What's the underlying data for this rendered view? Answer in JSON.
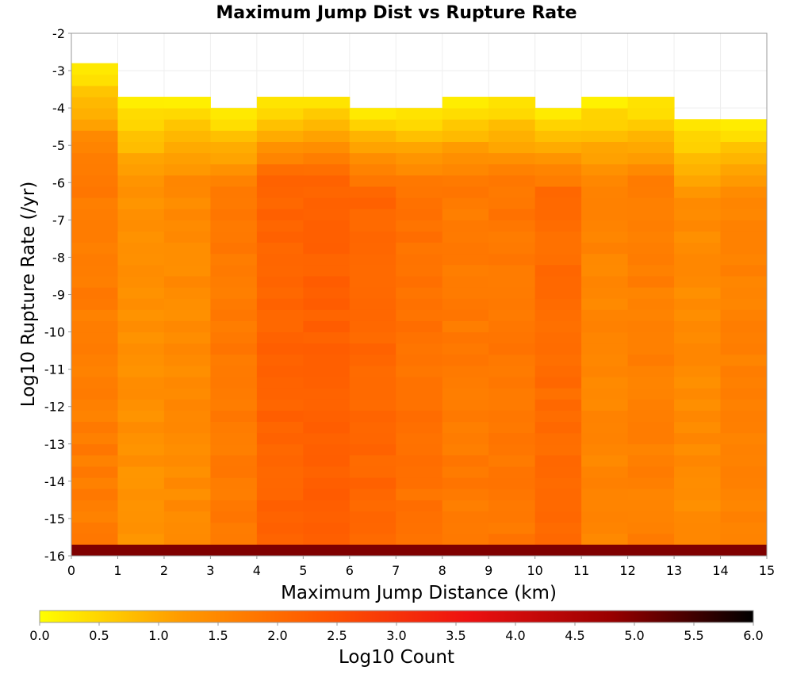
{
  "chart_data": {
    "type": "heatmap",
    "title": "Maximum Jump Dist vs Rupture Rate",
    "xlabel": "Maximum Jump Distance (km)",
    "ylabel": "Log10 Rupture Rate (/yr)",
    "xlim": [
      0,
      15
    ],
    "ylim": [
      -16,
      -2
    ],
    "x_ticks": [
      "0",
      "1",
      "2",
      "3",
      "4",
      "5",
      "6",
      "7",
      "8",
      "9",
      "10",
      "11",
      "12",
      "13",
      "14",
      "15"
    ],
    "y_ticks": [
      "-2",
      "-3",
      "-4",
      "-5",
      "-6",
      "-7",
      "-8",
      "-9",
      "-10",
      "-11",
      "-12",
      "-13",
      "-14",
      "-15",
      "-16"
    ],
    "x_bin_width": 1,
    "y_bin_height": 0.3,
    "y_bin_start": -16,
    "columns": [
      {
        "x": 0,
        "top": -2.7,
        "base": 1.7,
        "variation": 0.12
      },
      {
        "x": 1,
        "top": -3.6,
        "base": 1.35,
        "variation": 0.1
      },
      {
        "x": 2,
        "top": -3.6,
        "base": 1.45,
        "variation": 0.1
      },
      {
        "x": 3,
        "top": -3.9,
        "base": 1.75,
        "variation": 0.1
      },
      {
        "x": 4,
        "top": -3.6,
        "base": 2.15,
        "variation": 0.1
      },
      {
        "x": 5,
        "top": -3.6,
        "base": 2.2,
        "variation": 0.1
      },
      {
        "x": 6,
        "top": -3.9,
        "base": 2.1,
        "variation": 0.1
      },
      {
        "x": 7,
        "top": -3.9,
        "base": 1.9,
        "variation": 0.1
      },
      {
        "x": 8,
        "top": -3.6,
        "base": 1.75,
        "variation": 0.1
      },
      {
        "x": 9,
        "top": -3.6,
        "base": 1.8,
        "variation": 0.1
      },
      {
        "x": 10,
        "top": -3.9,
        "base": 2.0,
        "variation": 0.1
      },
      {
        "x": 11,
        "top": -3.6,
        "base": 1.55,
        "variation": 0.1
      },
      {
        "x": 12,
        "top": -3.6,
        "base": 1.65,
        "variation": 0.1
      },
      {
        "x": 13,
        "top": -4.2,
        "base": 1.45,
        "variation": 0.1
      },
      {
        "x": 14,
        "top": -4.2,
        "base": 1.6,
        "variation": 0.1
      }
    ],
    "bottom_row": {
      "y": -16,
      "value": 5.0
    },
    "colorbar": {
      "label": "Log10 Count",
      "range": [
        0,
        6
      ],
      "ticks": [
        "0.0",
        "0.5",
        "1.0",
        "1.5",
        "2.0",
        "2.5",
        "3.0",
        "3.5",
        "4.0",
        "4.5",
        "5.0",
        "5.5",
        "6.0"
      ],
      "colors": [
        "#ffff00",
        "#ff9900",
        "#ff5500",
        "#ee1111",
        "#990000",
        "#000000"
      ]
    }
  }
}
